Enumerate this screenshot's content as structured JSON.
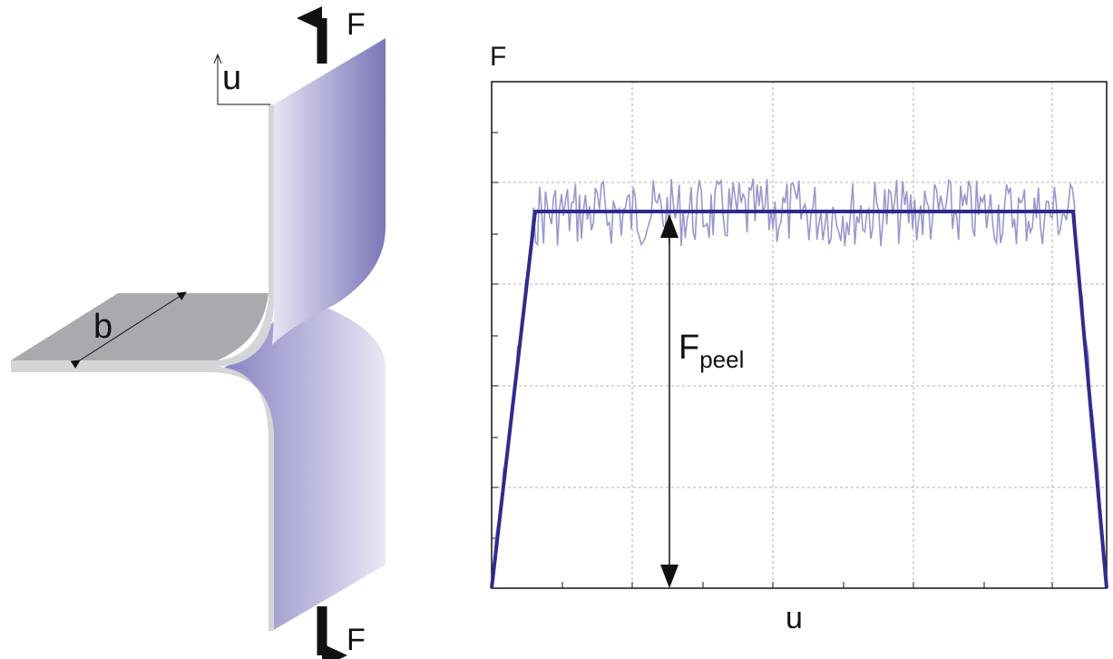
{
  "specimen": {
    "force_top": "F",
    "displacement": "u",
    "width": "b",
    "force_bottom": "F"
  },
  "plot": {
    "y_label": "F",
    "x_label": "u",
    "peel_label": "F",
    "peel_subscript": "peel"
  }
}
